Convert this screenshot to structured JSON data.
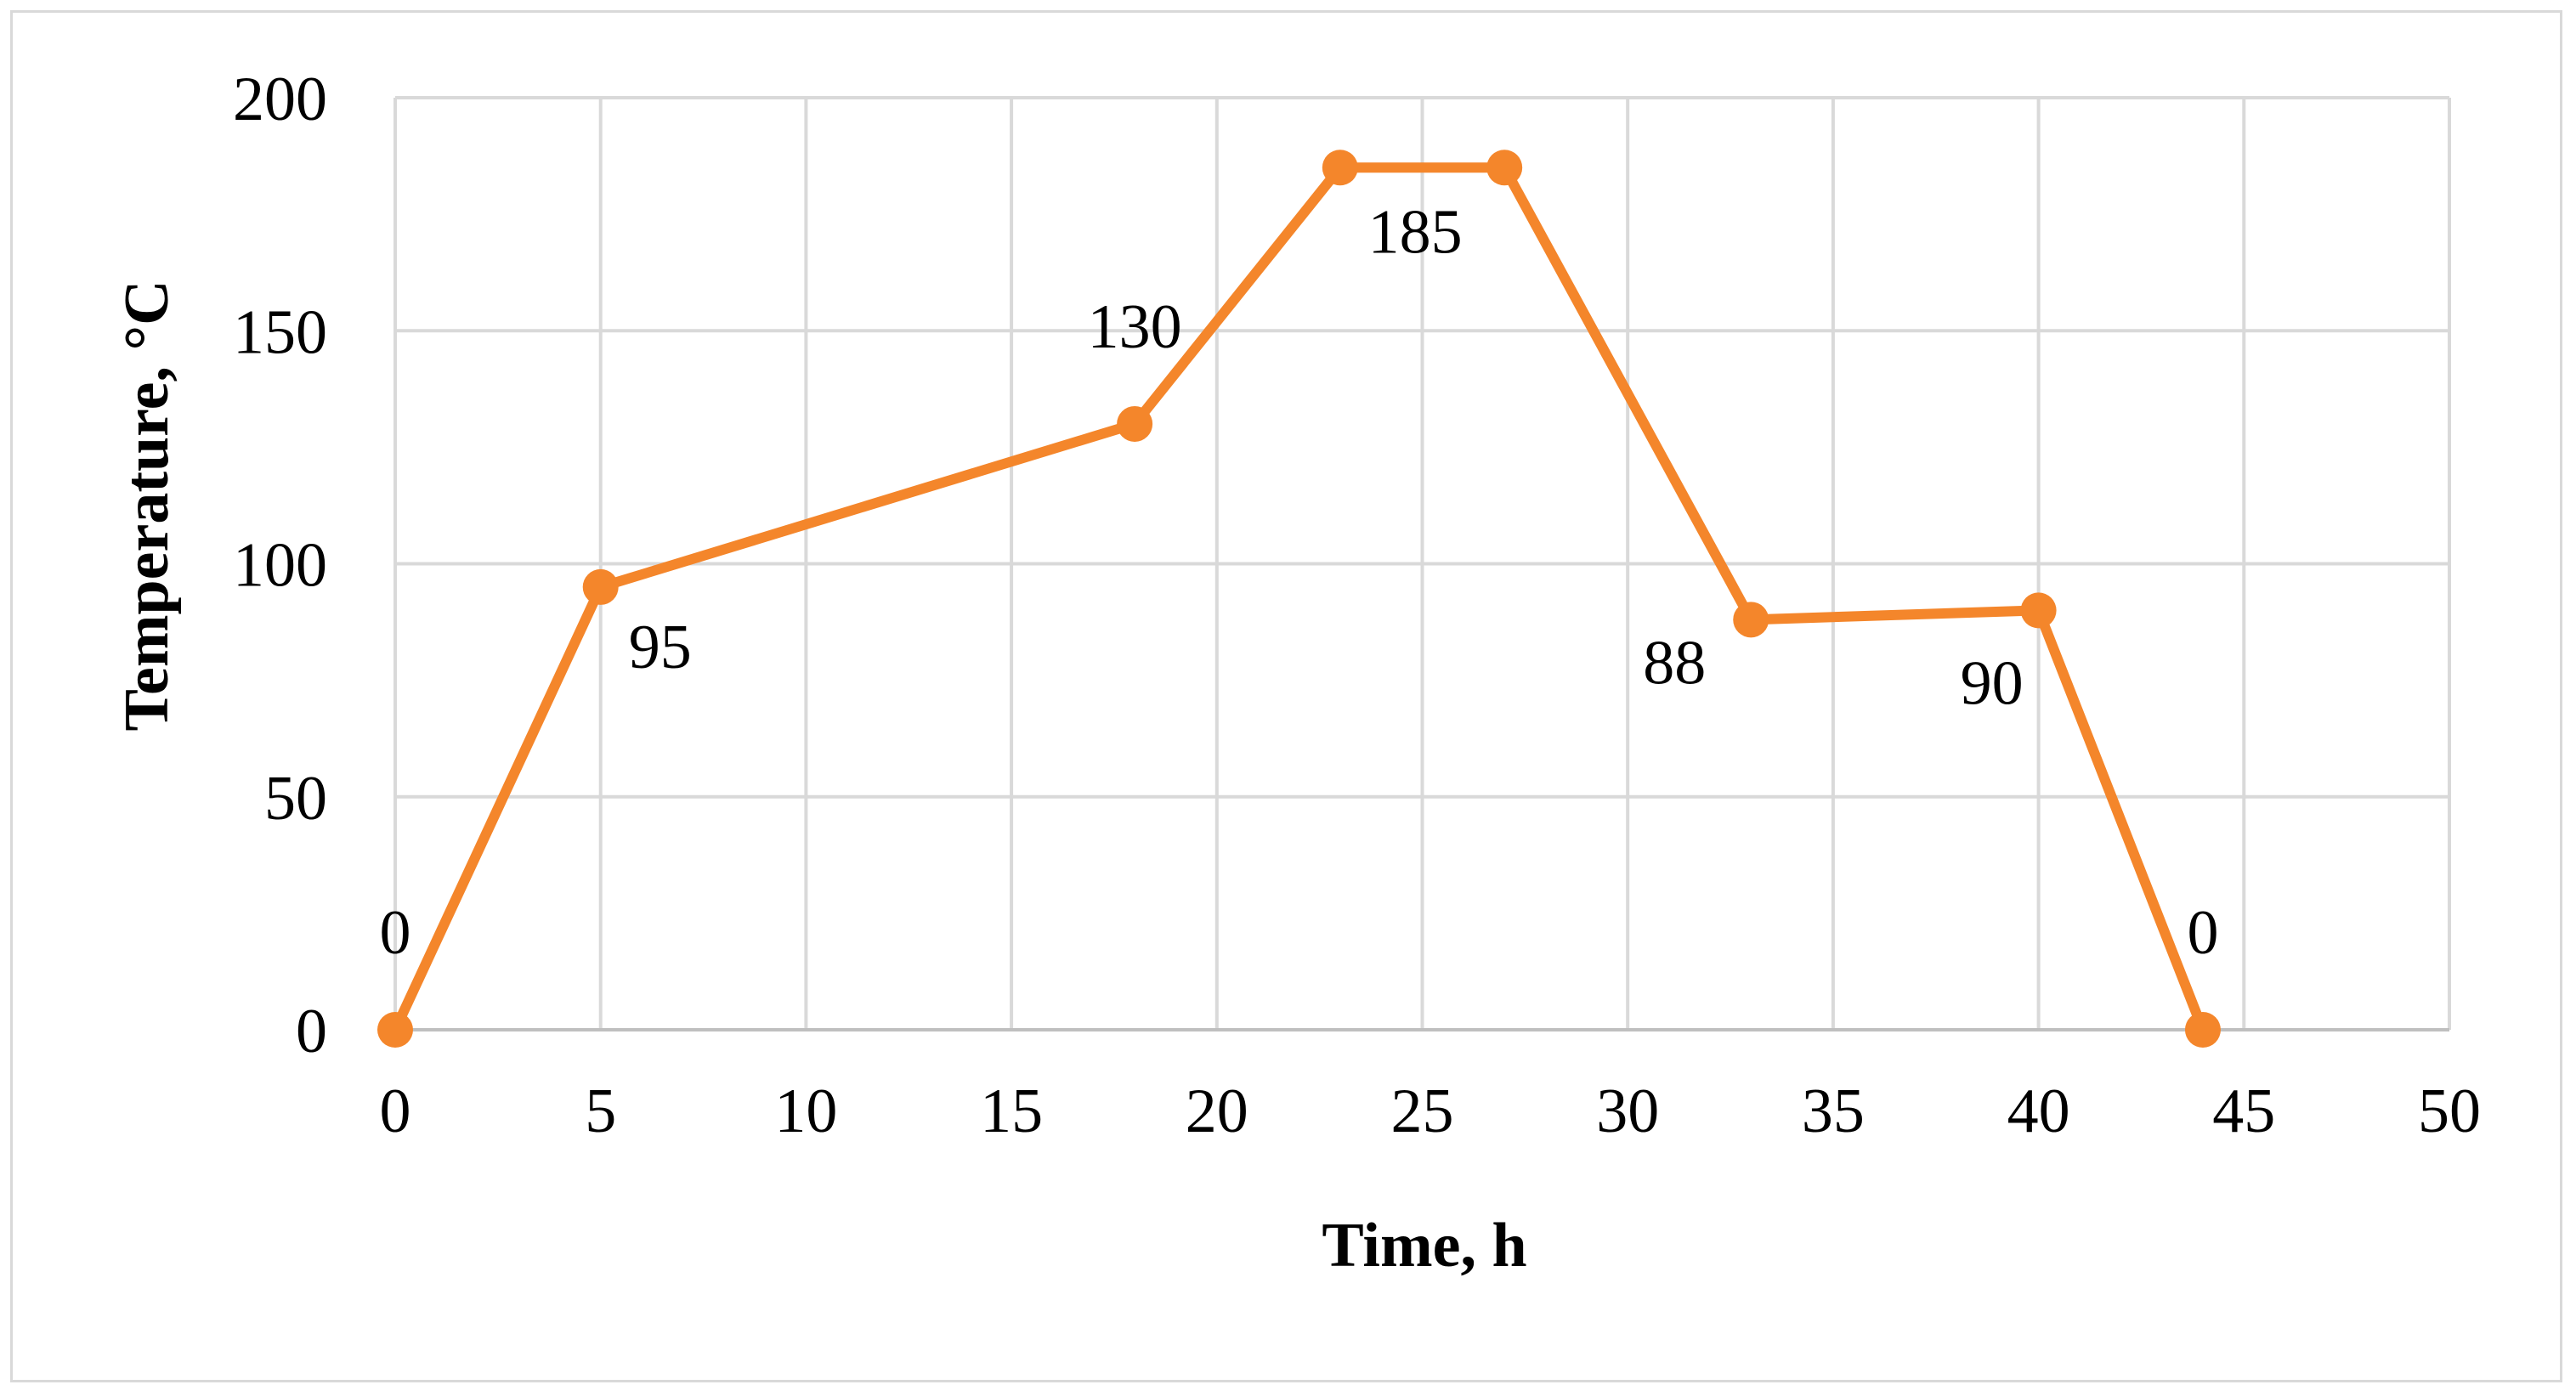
{
  "chart_data": {
    "type": "line",
    "xlabel": "Time, h",
    "ylabel": "Temperature, °C",
    "xlim": [
      0,
      50
    ],
    "ylim": [
      0,
      200
    ],
    "x_ticks": [
      0,
      5,
      10,
      15,
      20,
      25,
      30,
      35,
      40,
      45,
      50
    ],
    "y_ticks": [
      0,
      50,
      100,
      150,
      200
    ],
    "grid": true,
    "legend": "none",
    "series": [
      {
        "color": "#f4862b",
        "points": [
          {
            "x": 0,
            "y": 0,
            "label": "0"
          },
          {
            "x": 5,
            "y": 95,
            "label": "95"
          },
          {
            "x": 18,
            "y": 130,
            "label": "130"
          },
          {
            "x": 23,
            "y": 185,
            "label": ""
          },
          {
            "x": 27,
            "y": 185,
            "label": "185"
          },
          {
            "x": 33,
            "y": 88,
            "label": "88"
          },
          {
            "x": 40,
            "y": 90,
            "label": "90"
          },
          {
            "x": 44,
            "y": 0,
            "label": "0"
          }
        ]
      }
    ]
  }
}
